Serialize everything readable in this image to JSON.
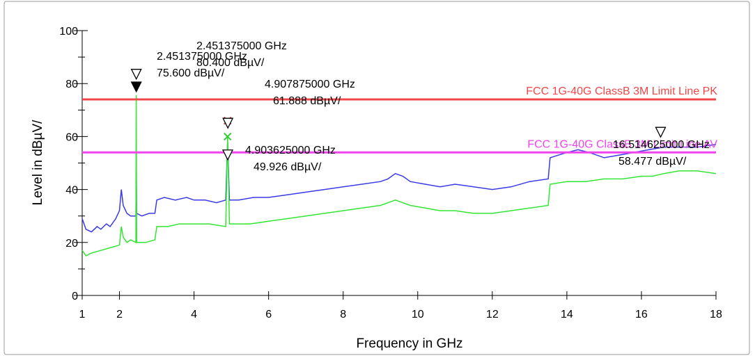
{
  "chart_data": {
    "type": "line",
    "x_label": "Frequency in GHz",
    "y_label": "Level in dBµV/",
    "xlim": [
      1,
      18
    ],
    "ylim": [
      0,
      100
    ],
    "xticks": [
      1,
      2,
      4,
      6,
      8,
      10,
      12,
      14,
      16,
      18
    ],
    "yticks": [
      0,
      20,
      40,
      60,
      80,
      100
    ],
    "series": [
      {
        "color": "#3a3ae6",
        "x": [
          1.0,
          1.1,
          1.25,
          1.4,
          1.5,
          1.65,
          1.75,
          1.9,
          2.0,
          2.05,
          2.1,
          2.2,
          2.3,
          2.44,
          2.45,
          2.46,
          2.6,
          2.8,
          2.95,
          3.0,
          3.2,
          3.5,
          3.8,
          4.0,
          4.3,
          4.6,
          4.85,
          4.9,
          4.95,
          5.2,
          5.6,
          6.0,
          6.5,
          7.0,
          7.5,
          8.0,
          8.5,
          9.0,
          9.2,
          9.4,
          9.6,
          9.8,
          10.2,
          10.6,
          11.0,
          11.5,
          12.0,
          12.5,
          13.0,
          13.5,
          13.55,
          14.0,
          14.3,
          14.6,
          15.0,
          15.4,
          15.8,
          16.2,
          16.6,
          17.0,
          17.5,
          18.0
        ],
        "values": [
          29,
          25,
          24,
          26,
          25,
          27,
          26,
          29,
          32,
          40,
          34,
          31,
          30,
          30,
          48,
          31,
          30,
          31,
          31,
          36,
          37,
          36,
          37,
          36,
          36,
          35,
          36,
          58,
          36,
          36,
          37,
          37,
          38,
          39,
          40,
          41,
          42,
          43,
          44,
          46,
          45,
          43,
          42,
          41,
          42,
          41,
          40,
          41,
          43,
          44,
          52,
          54,
          55,
          54,
          52,
          53,
          54,
          55,
          56,
          56,
          56,
          57
        ]
      },
      {
        "color": "#33e633",
        "x": [
          1.0,
          1.1,
          1.25,
          1.5,
          1.75,
          2.0,
          2.05,
          2.1,
          2.2,
          2.3,
          2.44,
          2.45,
          2.46,
          2.7,
          2.95,
          3.0,
          3.3,
          3.6,
          4.0,
          4.4,
          4.85,
          4.9,
          4.95,
          5.5,
          6.0,
          6.5,
          7.0,
          7.5,
          8.0,
          8.5,
          9.0,
          9.4,
          9.8,
          10.2,
          10.6,
          11.0,
          11.5,
          12.0,
          12.5,
          13.0,
          13.5,
          13.55,
          14.0,
          14.5,
          15.0,
          15.5,
          16.0,
          16.3,
          16.6,
          17.0,
          17.5,
          18.0
        ],
        "values": [
          17,
          15,
          16,
          17,
          18,
          19,
          26,
          22,
          20,
          21,
          20,
          75.6,
          20,
          20,
          21,
          26,
          26,
          27,
          27,
          27,
          26,
          60,
          27,
          27,
          28,
          29,
          30,
          31,
          32,
          33,
          34,
          36,
          34,
          33,
          32,
          32,
          31,
          31,
          32,
          33,
          34,
          42,
          43,
          43,
          44,
          44,
          45,
          45,
          46,
          47,
          47,
          46
        ]
      }
    ],
    "limit_lines": [
      {
        "name": "FCC 1G-40G ClassB 3M Limit Line PK",
        "value": 74,
        "color": "#f04848"
      },
      {
        "name": "FCC 1G-40G ClassB 3M Limit Line AV",
        "value": 54,
        "color": "#ee44ee"
      }
    ],
    "markers": [
      {
        "freq_label": "2.451375000 GHz",
        "level_label": "80.400 dBµV/",
        "x": 2.451375,
        "y": 80.4,
        "symbol": "open"
      },
      {
        "freq_label": "2.451375000 GHz",
        "level_label": "75.600 dBµV/",
        "x": 2.451375,
        "y": 75.6,
        "symbol": "filled"
      },
      {
        "freq_label": "4.907875000 GHz",
        "level_label": "61.888 dBµV/",
        "x": 4.907875,
        "y": 61.888,
        "symbol": "open"
      },
      {
        "freq_label": "4.903625000 GHz",
        "level_label": "49.926 dBµV/",
        "x": 4.903625,
        "y": 49.926,
        "symbol": "open"
      },
      {
        "freq_label": "16.514625000 GHz",
        "level_label": "58.477 dBµV/",
        "x": 16.514625,
        "y": 58.477,
        "symbol": "open"
      }
    ],
    "crosses": [
      {
        "x": 4.9,
        "y": 66,
        "color": "#e03030"
      },
      {
        "x": 4.9,
        "y": 60,
        "color": "#33cc33"
      }
    ]
  }
}
